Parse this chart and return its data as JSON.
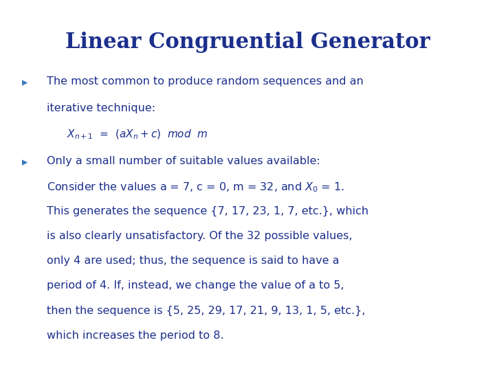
{
  "title": "Linear Congruential Generator",
  "title_color": "#1c2f8c",
  "title_fontsize": 22,
  "background_color": "#ffffff",
  "bullet_color": "#3a7abf",
  "text_color": "#1c2f8c",
  "text_fontsize": 11.5,
  "formula_fontsize": 11,
  "bullet1_line1": "The most common to produce random sequences and an",
  "bullet1_line2": "iterative technique:",
  "formula": "$X_{n+1}$  =  $(aX_n$  +  $c)$  mod  $m$",
  "bullet2_lines": [
    "Only a small number of suitable values available:",
    "Consider the values a = 7, c = 0, m = 32, and $X_0$ = 1.",
    "This generates the sequence {7, 17, 23, 1, 7, etc.}, which",
    "is also clearly unsatisfactory. Of the 32 possible values,",
    "only 4 are used; thus, the sequence is said to have a",
    "period of 4. If, instead, we change the value of a to 5,",
    "then the sequence is {5, 25, 29, 17, 21, 9, 13, 1, 5, etc.},",
    "which increases the period to 8."
  ],
  "fig_width": 7.2,
  "fig_height": 5.4,
  "dpi": 100
}
